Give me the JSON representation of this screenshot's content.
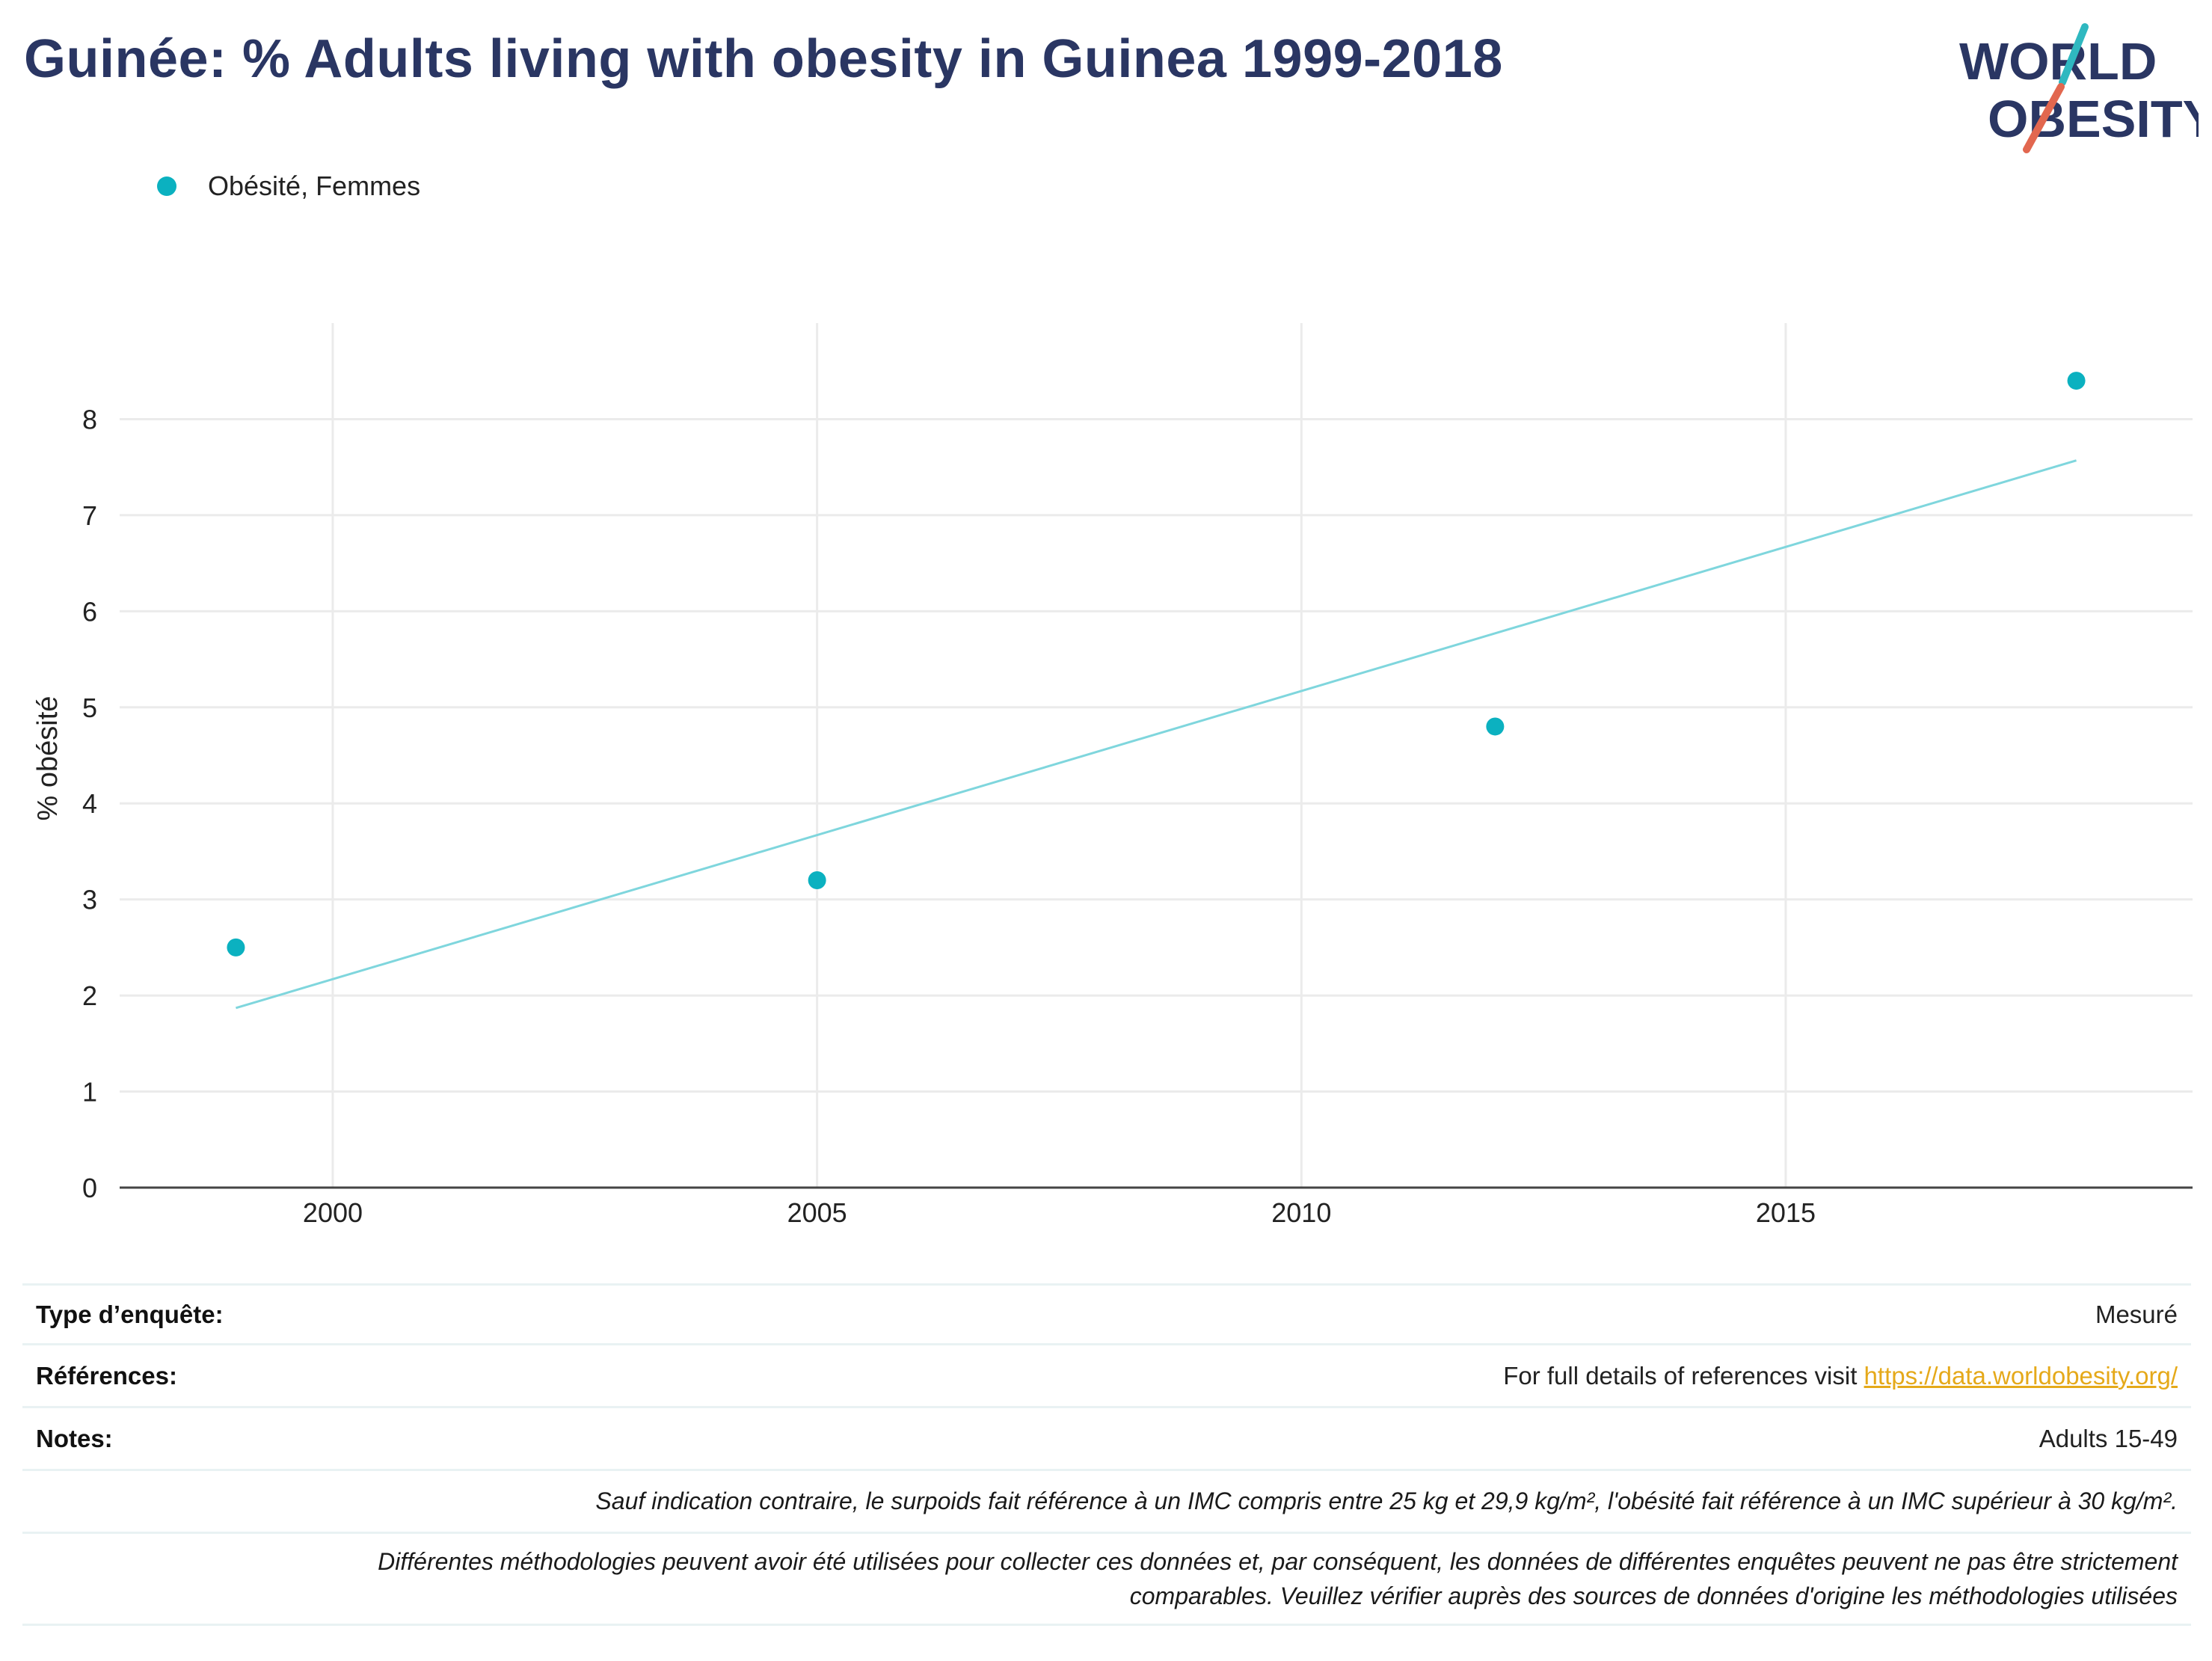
{
  "title": "Guinée: % Adults living with obesity in Guinea 1999-2018",
  "logo": {
    "line1": "WORLD",
    "line2": "OBESITY"
  },
  "legend": {
    "label": "Obésité, Femmes"
  },
  "colors": {
    "series": "#0bb1c0",
    "trend": "#7fd6dd",
    "title": "#2a3663",
    "link": "#e5a91a"
  },
  "chart_data": {
    "type": "scatter",
    "title": "Guinée: % Adults living with obesity in Guinea 1999-2018",
    "xlabel": "",
    "ylabel": "% obésité",
    "xlim": [
      1997.8,
      2019.2
    ],
    "ylim": [
      0,
      9
    ],
    "x_ticks": [
      2000,
      2005,
      2010,
      2015
    ],
    "y_ticks": [
      0,
      1,
      2,
      3,
      4,
      5,
      6,
      7,
      8
    ],
    "grid": true,
    "legend_position": "top-left",
    "series": [
      {
        "name": "Obésité, Femmes",
        "x": [
          1999,
          2005,
          2012,
          2018
        ],
        "y": [
          2.5,
          3.2,
          4.8,
          8.4
        ]
      }
    ],
    "trendline": {
      "x": [
        1999,
        2018
      ],
      "y": [
        1.87,
        7.57
      ]
    }
  },
  "footer": {
    "survey_type_label": "Type d’enquête:",
    "survey_type_value": "Mesuré",
    "references_label": "Références:",
    "references_text": "For full details of references visit ",
    "references_link": "https://data.worldobesity.org/",
    "notes_label": "Notes:",
    "notes_value": "Adults 15-49",
    "note1": "Sauf indication contraire, le surpoids fait référence à un IMC compris entre 25 kg et 29,9 kg/m², l'obésité fait référence à un IMC supérieur à 30 kg/m².",
    "note2_line1": "Différentes méthodologies peuvent avoir été utilisées pour collecter ces données et, par conséquent, les données de différentes enquêtes peuvent ne pas être strictement",
    "note2_line2": "comparables. Veuillez vérifier auprès des sources de données d'origine les méthodologies utilisées"
  }
}
